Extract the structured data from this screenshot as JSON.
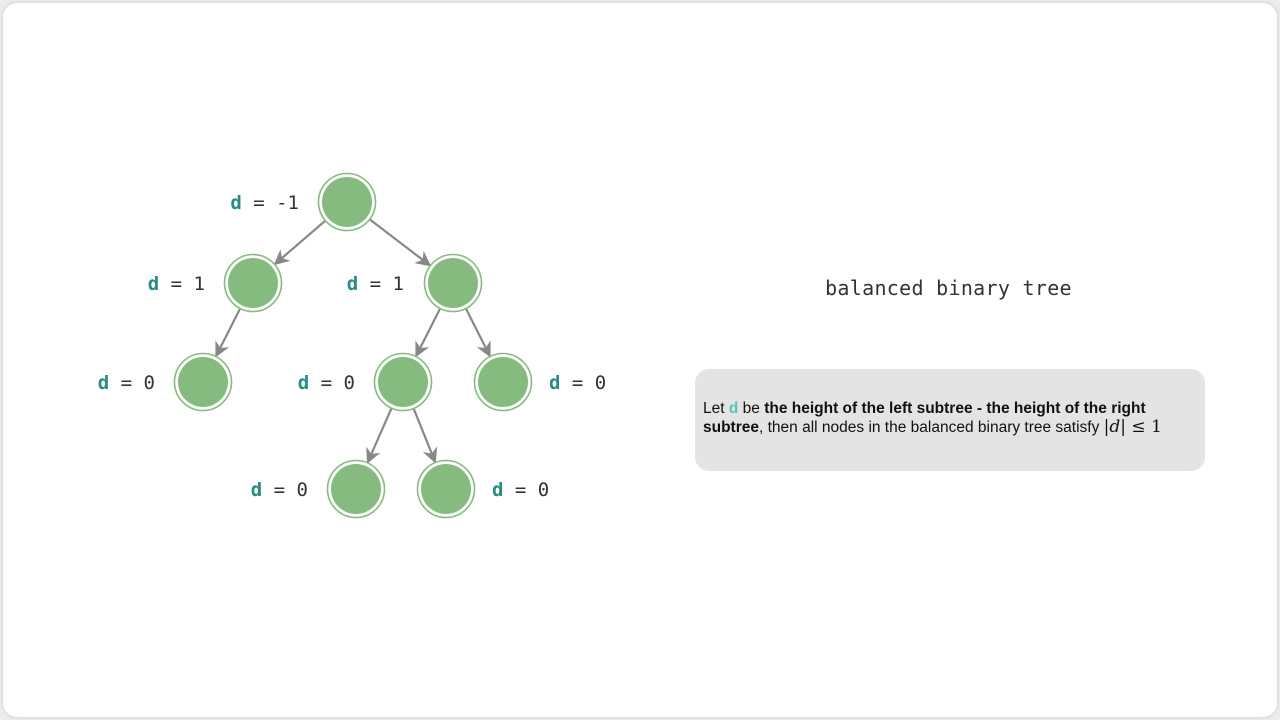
{
  "colors": {
    "node_fill": "#86bb80",
    "node_ring": "#86bb80",
    "edge": "#888888",
    "d_var": "#2a8a84",
    "d_var_light": "#5cc2bc",
    "label_text": "#333333"
  },
  "title": "balanced binary tree",
  "tree": {
    "nodes": [
      {
        "id": "root",
        "label_var": "d",
        "label_eq": " = ",
        "label_value": "-1"
      },
      {
        "id": "L",
        "label_var": "d",
        "label_eq": " = ",
        "label_value": "1"
      },
      {
        "id": "R",
        "label_var": "d",
        "label_eq": " = ",
        "label_value": "1"
      },
      {
        "id": "LL",
        "label_var": "d",
        "label_eq": " = ",
        "label_value": "0"
      },
      {
        "id": "RL",
        "label_var": "d",
        "label_eq": " = ",
        "label_value": "0"
      },
      {
        "id": "RR",
        "label_var": "d",
        "label_eq": " = ",
        "label_value": "0"
      },
      {
        "id": "RLL",
        "label_var": "d",
        "label_eq": " = ",
        "label_value": "0"
      },
      {
        "id": "RLR",
        "label_var": "d",
        "label_eq": " = ",
        "label_value": "0"
      }
    ],
    "edges": [
      {
        "from": "root",
        "to": "L"
      },
      {
        "from": "root",
        "to": "R"
      },
      {
        "from": "L",
        "to": "LL"
      },
      {
        "from": "R",
        "to": "RL"
      },
      {
        "from": "R",
        "to": "RR"
      },
      {
        "from": "RL",
        "to": "RLL"
      },
      {
        "from": "RL",
        "to": "RLR"
      }
    ]
  },
  "note": {
    "let": "Let ",
    "var": "d",
    "be": " be ",
    "definition": "the height of the left subtree - the height of the right subtree",
    "rest": ", then all nodes in the balanced binary tree satisfy ",
    "math_open": "|",
    "math_var": "d",
    "math_close": "|",
    "math_rel": " ≤ ",
    "math_value": "1"
  }
}
